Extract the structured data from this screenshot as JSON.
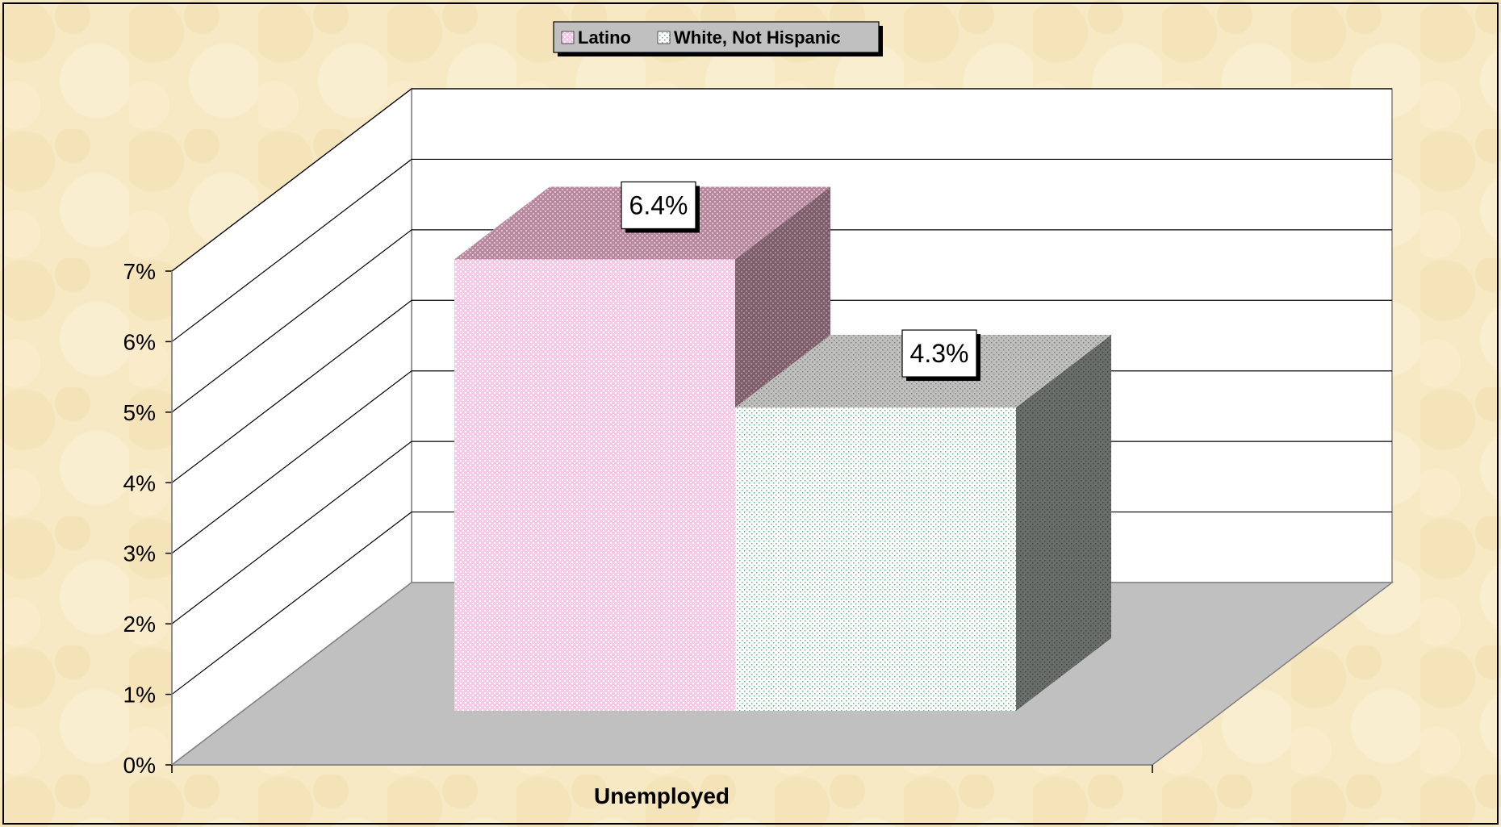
{
  "chart_data": {
    "type": "bar",
    "title": "",
    "categories": [
      "Unemployed"
    ],
    "series": [
      {
        "name": "Latino",
        "values": [
          6.4
        ],
        "color": "#f6c8ea",
        "top_color": "#b8899e",
        "side_color": "#7e5e6a",
        "dot_color": "#ffffff"
      },
      {
        "name": "White, Not Hispanic",
        "values": [
          4.3
        ],
        "color": "#ffffff",
        "top_color": "#b4b6b3",
        "side_color": "#6a6e6b",
        "dot_color": "#5fb08a"
      }
    ],
    "data_labels": [
      "6.4%",
      "4.3%"
    ],
    "ylim": [
      0,
      7
    ],
    "yticks": [
      "0%",
      "1%",
      "2%",
      "3%",
      "4%",
      "5%",
      "6%",
      "7%"
    ],
    "xlabel": "",
    "ylabel": "",
    "grid": true,
    "legend_position": "top-center",
    "colors": {
      "background": "#f7e9c4",
      "floor": "#c0c0c0",
      "walls": "#ffffff",
      "axis": "#808080"
    }
  }
}
